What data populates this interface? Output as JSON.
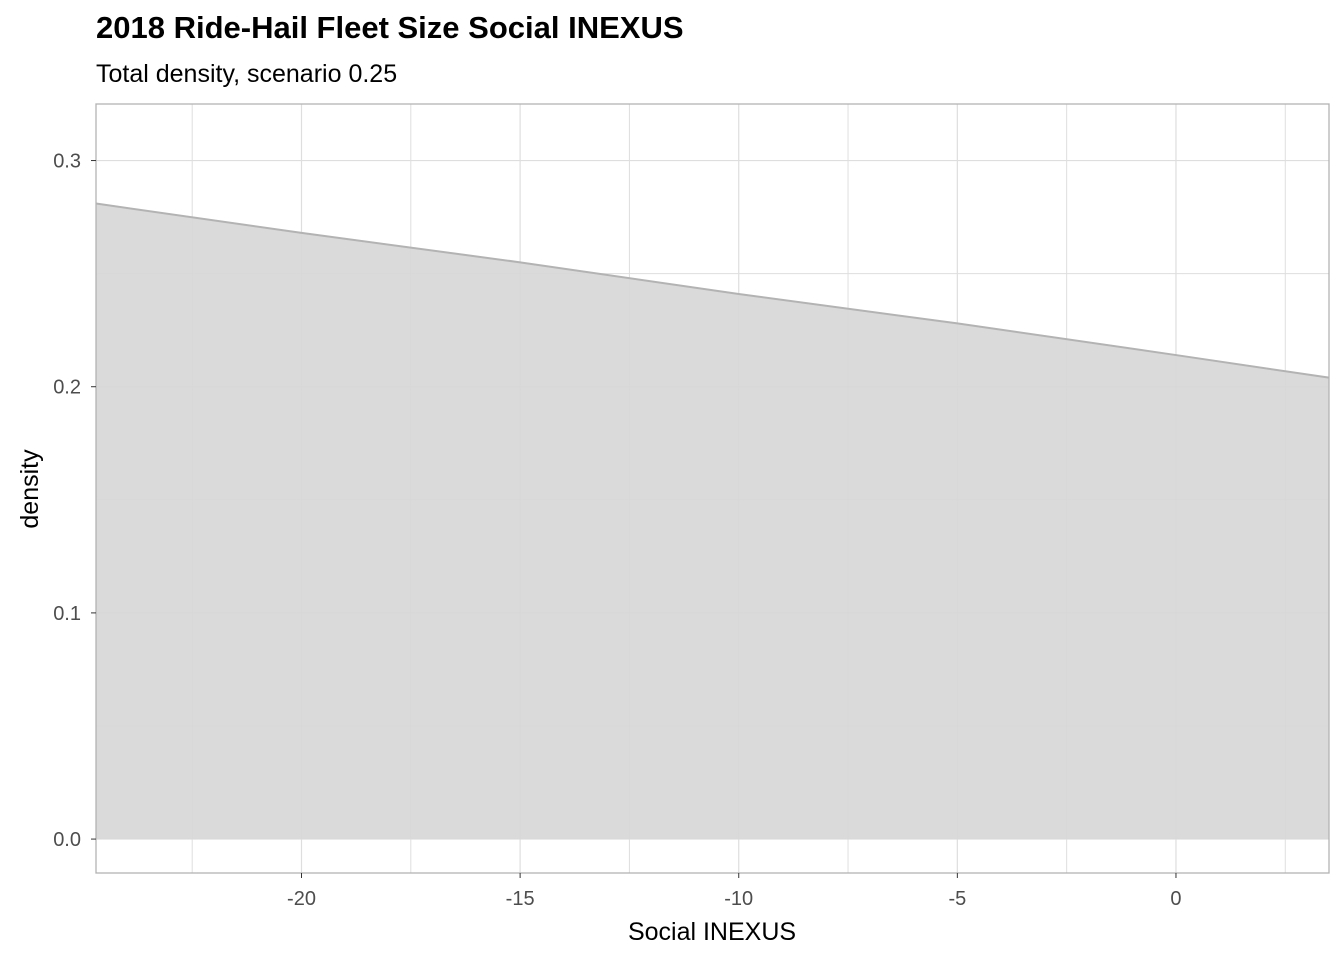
{
  "chart_data": {
    "type": "area",
    "title": "2018 Ride-Hail Fleet Size Social INEXUS",
    "subtitle": "Total density, scenario 0.25",
    "xlabel": "Social INEXUS",
    "ylabel": "density",
    "xlim": [
      -24.7,
      3.5
    ],
    "ylim": [
      -0.015,
      0.325
    ],
    "x_ticks": [
      -20,
      -15,
      -10,
      -5,
      0
    ],
    "x_tick_labels": [
      "-20",
      "-15",
      "-10",
      "-5",
      "0"
    ],
    "y_ticks": [
      0.0,
      0.1,
      0.2,
      0.3
    ],
    "y_tick_labels": [
      "0.0",
      "0.1",
      "0.2",
      "0.3"
    ],
    "grid": true,
    "series": [
      {
        "x": [
          -24.7,
          -20,
          -15,
          -10,
          -5,
          0,
          3.5
        ],
        "y": [
          0.281,
          0.268,
          0.255,
          0.241,
          0.228,
          0.214,
          0.204
        ]
      }
    ],
    "colors": {
      "fill": "#d7d7d7",
      "line": "#b3b3b3",
      "grid": "#dedede",
      "panel_border": "#b3b3b3"
    }
  }
}
